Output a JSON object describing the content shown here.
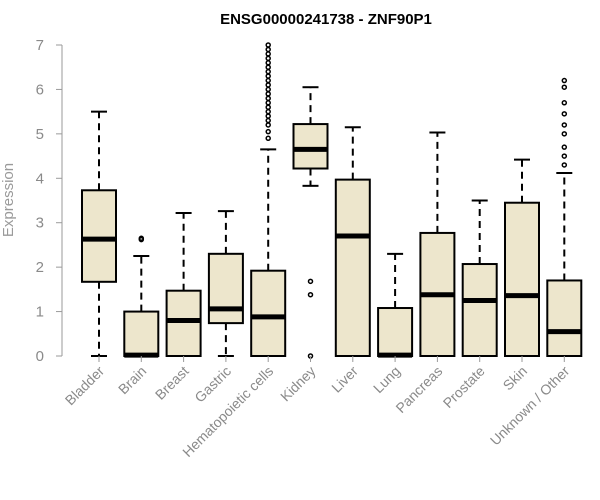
{
  "chart_data": {
    "type": "boxplot",
    "title": "ENSG00000241738 - ZNF90P1",
    "xlabel": "",
    "ylabel": "Expression",
    "ylim": [
      0,
      7
    ],
    "yticks": [
      0,
      1,
      2,
      3,
      4,
      5,
      6,
      7
    ],
    "box_color": "#ede6cc",
    "line_color": "#000000",
    "categories": [
      "Bladder",
      "Brain",
      "Breast",
      "Gastric",
      "Hematopoietic cells",
      "Kidney",
      "Liver",
      "Lung",
      "Pancreas",
      "Prostate",
      "Skin",
      "Unknown / Other"
    ],
    "boxes": [
      {
        "name": "Bladder",
        "whisker_low": 0,
        "q1": 1.67,
        "median": 2.63,
        "q3": 3.73,
        "whisker_high": 5.5,
        "outliers": []
      },
      {
        "name": "Brain",
        "whisker_low": 0,
        "q1": 0,
        "median": 0.02,
        "q3": 1.0,
        "whisker_high": 2.25,
        "outliers": [
          2.62,
          2.65
        ]
      },
      {
        "name": "Breast",
        "whisker_low": 0,
        "q1": 0,
        "median": 0.8,
        "q3": 1.47,
        "whisker_high": 3.22,
        "outliers": []
      },
      {
        "name": "Gastric",
        "whisker_low": 0,
        "q1": 0.74,
        "median": 1.06,
        "q3": 2.3,
        "whisker_high": 3.26,
        "outliers": []
      },
      {
        "name": "Hematopoietic cells",
        "whisker_low": 0,
        "q1": 0,
        "median": 0.88,
        "q3": 1.92,
        "whisker_high": 4.65,
        "outliers": [
          4.9,
          5.05,
          5.2,
          5.3,
          5.4,
          5.5,
          5.6,
          5.7,
          5.8,
          5.9,
          6.0,
          6.1,
          6.2,
          6.3,
          6.4,
          6.5,
          6.6,
          6.7,
          6.8,
          6.9,
          7.0
        ]
      },
      {
        "name": "Kidney",
        "whisker_low": 3.83,
        "q1": 4.22,
        "median": 4.65,
        "q3": 5.22,
        "whisker_high": 6.05,
        "outliers": [
          1.68,
          1.38,
          0
        ]
      },
      {
        "name": "Liver",
        "whisker_low": 0,
        "q1": 0,
        "median": 2.7,
        "q3": 3.97,
        "whisker_high": 5.15,
        "outliers": []
      },
      {
        "name": "Lung",
        "whisker_low": 0,
        "q1": 0,
        "median": 0.02,
        "q3": 1.08,
        "whisker_high": 2.3,
        "outliers": []
      },
      {
        "name": "Pancreas",
        "whisker_low": 0,
        "q1": 0,
        "median": 1.38,
        "q3": 2.77,
        "whisker_high": 5.03,
        "outliers": []
      },
      {
        "name": "Prostate",
        "whisker_low": 0,
        "q1": 0,
        "median": 1.25,
        "q3": 2.07,
        "whisker_high": 3.5,
        "outliers": []
      },
      {
        "name": "Skin",
        "whisker_low": 0,
        "q1": 0,
        "median": 1.36,
        "q3": 3.45,
        "whisker_high": 4.42,
        "outliers": []
      },
      {
        "name": "Unknown / Other",
        "whisker_low": 0,
        "q1": 0,
        "median": 0.55,
        "q3": 1.7,
        "whisker_high": 4.12,
        "outliers": [
          4.3,
          4.5,
          4.7,
          5.0,
          5.2,
          5.45,
          5.7,
          6.05,
          6.2
        ]
      }
    ]
  }
}
